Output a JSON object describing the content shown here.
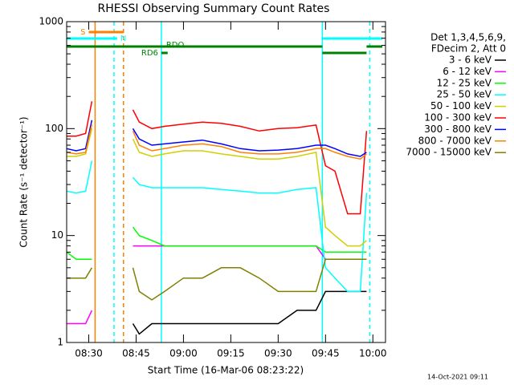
{
  "chart_data": {
    "type": "line",
    "title": "RHESSI Observing Summary Count Rates",
    "xlabel": "Start Time (16-Mar-06 08:23:22)",
    "ylabel": "Count Rate (s⁻¹ detector⁻¹)",
    "footer": "14-Oct-2021 09:11",
    "legend_title": [
      "Det 1,3,4,5,6,9,",
      "FDecim 2, Att 0"
    ],
    "legend": "right",
    "log_y": true,
    "xlim": [
      "08:23",
      "10:04"
    ],
    "xticks": [
      "08:30",
      "08:45",
      "09:00",
      "09:15",
      "09:30",
      "09:45",
      "10:00"
    ],
    "ylim": [
      1,
      1000
    ],
    "yticks": [
      1,
      10,
      100,
      1000
    ],
    "x": [
      "08:23",
      "08:26",
      "08:29",
      "08:31",
      "08:32",
      "08:44",
      "08:46",
      "08:50",
      "08:54",
      "09:00",
      "09:06",
      "09:12",
      "09:18",
      "09:24",
      "09:30",
      "09:36",
      "09:42",
      "09:45",
      "09:48",
      "09:52",
      "09:56",
      "09:58"
    ],
    "series": [
      {
        "name": "3 - 6 keV",
        "color": "#000000",
        "values": [
          null,
          null,
          null,
          null,
          null,
          1.5,
          1.2,
          1.5,
          1.5,
          1.5,
          1.5,
          1.5,
          1.5,
          1.5,
          1.5,
          2,
          2,
          3,
          3,
          3,
          3,
          3
        ]
      },
      {
        "name": "6 - 12 keV",
        "color": "#ff00ff",
        "values": [
          1.5,
          1.5,
          1.5,
          2,
          null,
          8,
          8,
          8,
          8,
          8,
          8,
          8,
          8,
          8,
          8,
          8,
          8,
          6,
          6,
          6,
          6,
          6
        ]
      },
      {
        "name": "12 - 25 keV",
        "color": "#00ff00",
        "values": [
          7,
          6,
          6,
          6,
          null,
          12,
          10,
          9,
          8,
          8,
          8,
          8,
          8,
          8,
          8,
          8,
          8,
          7,
          7,
          7,
          7,
          7
        ]
      },
      {
        "name": "25 - 50 keV",
        "color": "#00ffff",
        "values": [
          26,
          25,
          26,
          50,
          null,
          35,
          30,
          28,
          28,
          28,
          28,
          27,
          26,
          25,
          25,
          27,
          28,
          5,
          4,
          3,
          3,
          25
        ]
      },
      {
        "name": "50 - 100 keV",
        "color": "#d0d000",
        "values": [
          55,
          55,
          58,
          100,
          null,
          80,
          60,
          55,
          58,
          62,
          62,
          58,
          55,
          52,
          52,
          55,
          60,
          12,
          10,
          8,
          8,
          9
        ]
      },
      {
        "name": "100 - 300 keV",
        "color": "#ff0000",
        "values": [
          85,
          85,
          90,
          180,
          null,
          150,
          115,
          100,
          105,
          110,
          115,
          112,
          105,
          95,
          100,
          102,
          108,
          45,
          40,
          16,
          16,
          95
        ]
      },
      {
        "name": "300 - 800 keV",
        "color": "#0000ff",
        "values": [
          65,
          62,
          65,
          120,
          null,
          100,
          80,
          70,
          72,
          75,
          78,
          72,
          65,
          62,
          63,
          65,
          70,
          70,
          65,
          58,
          55,
          60
        ]
      },
      {
        "name": "800 - 7000 keV",
        "color": "#ff8000",
        "values": [
          60,
          58,
          60,
          110,
          null,
          95,
          70,
          62,
          65,
          70,
          72,
          68,
          60,
          58,
          58,
          60,
          65,
          65,
          60,
          55,
          52,
          58
        ]
      },
      {
        "name": "7000 - 15000 keV",
        "color": "#808000",
        "values": [
          4,
          4,
          4,
          5,
          null,
          5,
          3,
          2.5,
          3,
          4,
          4,
          5,
          5,
          4,
          3,
          3,
          3,
          6,
          6,
          6,
          6,
          6
        ]
      }
    ],
    "flags": [
      {
        "label": "S",
        "color": "#ff8000",
        "intervals": [
          [
            "08:30",
            "08:41"
          ]
        ]
      },
      {
        "label": "N",
        "color": "#00ffff",
        "intervals": [
          [
            "08:23",
            "08:39"
          ],
          [
            "09:44",
            "10:03"
          ]
        ]
      },
      {
        "label": "RDO",
        "color": "#008000",
        "intervals": [
          [
            "08:23",
            "09:44"
          ],
          [
            "09:58",
            "10:03"
          ]
        ]
      },
      {
        "label": "RD6",
        "color": "#008000",
        "intervals": [
          [
            "08:53",
            "08:55"
          ],
          [
            "09:44",
            "09:58"
          ]
        ]
      }
    ],
    "vlines": [
      {
        "x": "08:32",
        "color": "#ff8000",
        "dashed": false
      },
      {
        "x": "08:38",
        "color": "#00ffff",
        "dashed": true
      },
      {
        "x": "08:41",
        "color": "#ff8000",
        "dashed": true
      },
      {
        "x": "08:53",
        "color": "#00ffff",
        "dashed": false
      },
      {
        "x": "09:44",
        "color": "#00ffff",
        "dashed": false
      },
      {
        "x": "09:59",
        "color": "#00ffff",
        "dashed": true
      }
    ]
  }
}
